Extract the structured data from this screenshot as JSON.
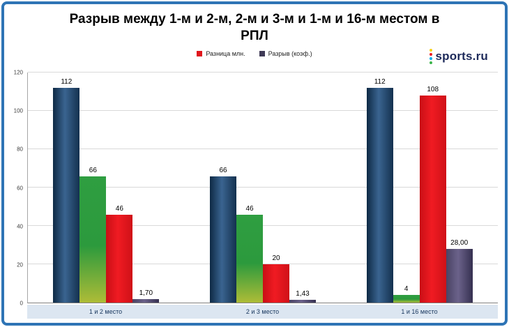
{
  "title": {
    "line1": "Разрыв между 1-м и 2-м, 2-м и 3-м и 1-м и 16-м местом в",
    "line2": "РПЛ"
  },
  "logo": {
    "text": "sports.ru",
    "dot_colors": [
      "#f7d117",
      "#ed1c24",
      "#00aeef",
      "#3ab54a"
    ]
  },
  "legend": [
    {
      "label": "Разница млн.",
      "color": "#e0161c"
    },
    {
      "label": "Разрыв (коэф.)",
      "color": "#3f3a56"
    }
  ],
  "chart_data": {
    "type": "bar",
    "categories": [
      "1 и 2 место",
      "2 и 3 место",
      "1 и 16 место"
    ],
    "series": [
      {
        "name": "",
        "color": "#1f4e79",
        "values": [
          112,
          66,
          112
        ],
        "labels": [
          "112",
          "66",
          "112"
        ]
      },
      {
        "name": "",
        "color": "#2e9e41",
        "values": [
          66,
          46,
          4
        ],
        "labels": [
          "66",
          "46",
          "4"
        ]
      },
      {
        "name": "Разница млн.",
        "color": "#e0161c",
        "values": [
          46,
          20,
          108
        ],
        "labels": [
          "46",
          "20",
          "108"
        ]
      },
      {
        "name": "Разрыв (коэф.)",
        "color": "#3f3a56",
        "values": [
          1.7,
          1.43,
          28.0
        ],
        "labels": [
          "1,70",
          "1,43",
          "28,00"
        ]
      }
    ],
    "yticks": [
      0,
      20,
      40,
      60,
      80,
      100,
      120
    ],
    "ylim": [
      0,
      120
    ],
    "grid": true,
    "legend_position": "top",
    "title": "Разрыв между 1-м и 2-м, 2-м и 3-м и 1-м и 16-м местом в РПЛ",
    "xlabel": "",
    "ylabel": ""
  }
}
